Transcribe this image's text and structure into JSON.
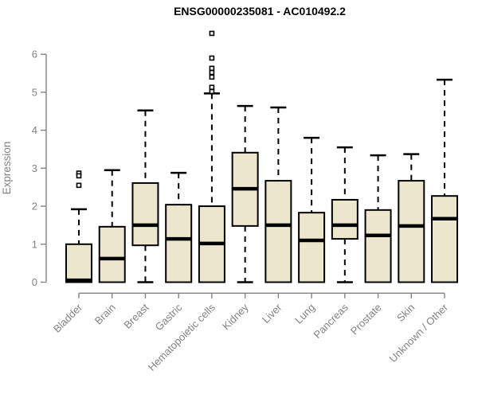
{
  "title": "ENSG00000235081 - AC010492.2",
  "chart_data": {
    "type": "boxplot",
    "title": "ENSG00000235081 - AC010492.2",
    "xlabel": "",
    "ylabel": "Expression",
    "ylim": [
      0,
      6
    ],
    "yticks": [
      0,
      1,
      2,
      3,
      4,
      5,
      6
    ],
    "grid": false,
    "legend": "none",
    "categories": [
      "Bladder",
      "Brain",
      "Breast",
      "Gastric",
      "Hematopoietic cells",
      "Kidney",
      "Liver",
      "Lung",
      "Pancreas",
      "Prostate",
      "Skin",
      "Unknown / Other"
    ],
    "series": [
      {
        "name": "Bladder",
        "whisker_low": 0,
        "q1": 0,
        "median": 0.05,
        "q3": 1.0,
        "whisker_high": 1.92,
        "outliers": [
          2.87,
          2.8,
          2.55
        ]
      },
      {
        "name": "Brain",
        "whisker_low": 0,
        "q1": 0,
        "median": 0.62,
        "q3": 1.46,
        "whisker_high": 2.95,
        "outliers": []
      },
      {
        "name": "Breast",
        "whisker_low": 0,
        "q1": 0.97,
        "median": 1.5,
        "q3": 2.61,
        "whisker_high": 4.52,
        "outliers": []
      },
      {
        "name": "Gastric",
        "whisker_low": 0,
        "q1": 0,
        "median": 1.14,
        "q3": 2.04,
        "whisker_high": 2.88,
        "outliers": []
      },
      {
        "name": "Hematopoietic cells",
        "whisker_low": 0,
        "q1": 0,
        "median": 1.02,
        "q3": 2.0,
        "whisker_high": 4.97,
        "outliers": [
          6.55,
          5.9,
          5.63,
          5.52,
          5.4,
          5.13,
          5.02
        ]
      },
      {
        "name": "Kidney",
        "whisker_low": 0,
        "q1": 1.48,
        "median": 2.46,
        "q3": 3.41,
        "whisker_high": 4.64,
        "outliers": []
      },
      {
        "name": "Liver",
        "whisker_low": 0,
        "q1": 0,
        "median": 1.5,
        "q3": 2.67,
        "whisker_high": 4.6,
        "outliers": []
      },
      {
        "name": "Lung",
        "whisker_low": 0,
        "q1": 0,
        "median": 1.1,
        "q3": 1.83,
        "whisker_high": 3.8,
        "outliers": []
      },
      {
        "name": "Pancreas",
        "whisker_low": 0,
        "q1": 1.14,
        "median": 1.5,
        "q3": 2.17,
        "whisker_high": 3.55,
        "outliers": []
      },
      {
        "name": "Prostate",
        "whisker_low": 0,
        "q1": 0,
        "median": 1.23,
        "q3": 1.9,
        "whisker_high": 3.34,
        "outliers": []
      },
      {
        "name": "Skin",
        "whisker_low": 0,
        "q1": 0,
        "median": 1.48,
        "q3": 2.67,
        "whisker_high": 3.37,
        "outliers": []
      },
      {
        "name": "Unknown / Other",
        "whisker_low": 0,
        "q1": 0,
        "median": 1.67,
        "q3": 2.27,
        "whisker_high": 5.33,
        "outliers": []
      }
    ],
    "colors": {
      "box_fill": "#ece7cc",
      "box_stroke": "#000000",
      "median": "#000000",
      "whisker": "#000000",
      "outlier_stroke": "#000000",
      "outlier_fill": "#ffffff",
      "axis": "#828282",
      "tick_label": "#828282",
      "title": "#000000",
      "background": "#ffffff"
    }
  }
}
